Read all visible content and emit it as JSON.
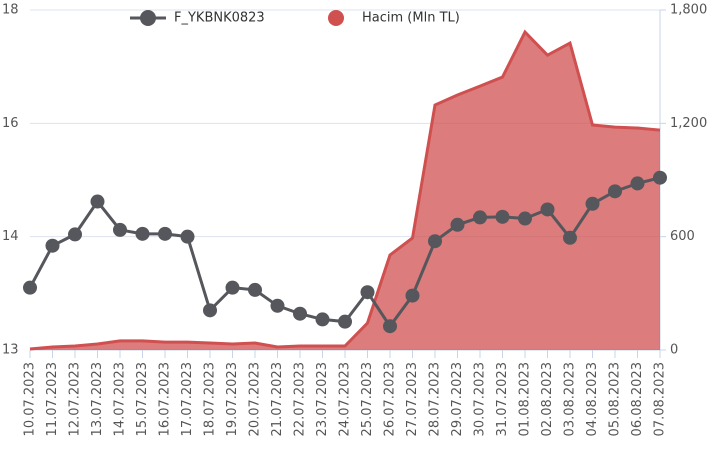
{
  "chart_data": {
    "type": "line",
    "categories": [
      "10.07.2023",
      "11.07.2023",
      "12.07.2023",
      "13.07.2023",
      "14.07.2023",
      "15.07.2023",
      "16.07.2023",
      "17.07.2023",
      "18.07.2023",
      "19.07.2023",
      "20.07.2023",
      "21.07.2023",
      "22.07.2023",
      "23.07.2023",
      "24.07.2023",
      "25.07.2023",
      "26.07.2023",
      "27.07.2023",
      "28.07.2023",
      "29.07.2023",
      "30.07.2023",
      "31.07.2023",
      "01.08.2023",
      "02.08.2023",
      "03.08.2023",
      "04.08.2023",
      "05.08.2023",
      "06.08.2023",
      "07.08.2023"
    ],
    "series": [
      {
        "name": "Hacim (Mln TL)",
        "type": "area",
        "axis": "y2",
        "color": "#d05050",
        "values": [
          5,
          16,
          21,
          32,
          48,
          48,
          42,
          42,
          37,
          32,
          37,
          16,
          21,
          21,
          21,
          143,
          503,
          593,
          1297,
          1350,
          1397,
          1445,
          1683,
          1561,
          1625,
          1191,
          1180,
          1175,
          1164
        ]
      },
      {
        "name": "F_YKBNK0823",
        "type": "line",
        "color": "#55575c",
        "values": [
          13.55,
          13.92,
          14.04,
          14.62,
          14.12,
          14.05,
          14.05,
          14.0,
          13.35,
          13.55,
          13.53,
          13.39,
          13.32,
          13.27,
          13.25,
          13.51,
          13.21,
          13.48,
          13.96,
          14.21,
          14.34,
          14.35,
          14.32,
          14.48,
          13.99,
          14.58,
          14.8,
          14.94,
          15.04
        ]
      }
    ],
    "ylim": [
      13,
      18
    ],
    "yticks": [
      13,
      14,
      16,
      18
    ],
    "y2lim": [
      0,
      1800
    ],
    "y2ticks": [
      0,
      600,
      {
        "value": 1200,
        "label": "1,200"
      },
      {
        "value": 1800,
        "label": "1,800"
      }
    ],
    "grid": true
  }
}
